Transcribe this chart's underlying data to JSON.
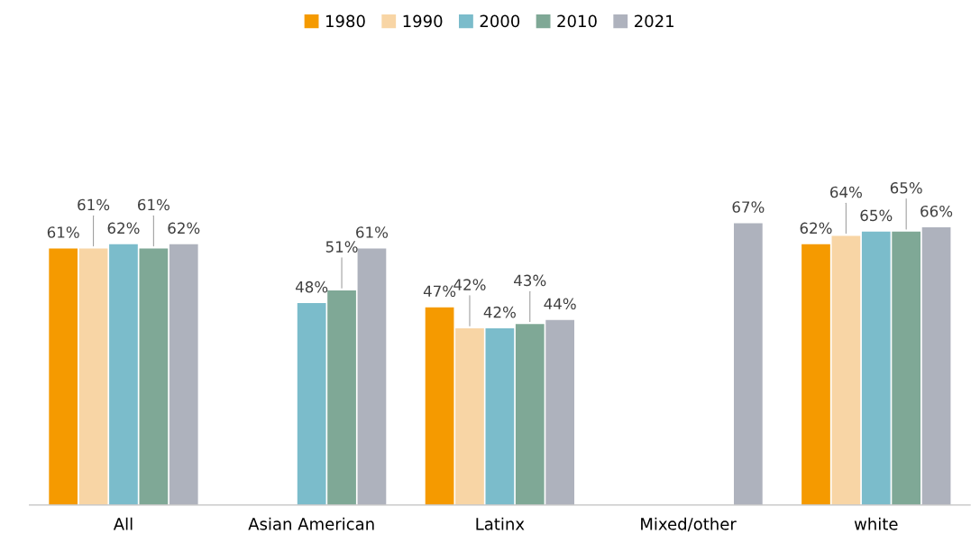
{
  "chart_data": {
    "type": "bar",
    "categories": [
      "All",
      "Asian American",
      "Latinx",
      "Mixed/other",
      "white"
    ],
    "series": [
      {
        "name": "1980",
        "color": "#f59a00",
        "values": [
          61,
          null,
          47,
          null,
          62
        ],
        "value_labels": [
          "61%",
          null,
          "47%",
          null,
          "62%"
        ]
      },
      {
        "name": "1990",
        "color": "#f8d5a5",
        "values": [
          61,
          null,
          42,
          null,
          64
        ],
        "value_labels": [
          "61%",
          null,
          "42%",
          null,
          "64%"
        ]
      },
      {
        "name": "2000",
        "color": "#7bbccb",
        "values": [
          62,
          48,
          42,
          null,
          65
        ],
        "value_labels": [
          "62%",
          "48%",
          "42%",
          null,
          "65%"
        ]
      },
      {
        "name": "2010",
        "color": "#7fa896",
        "values": [
          61,
          51,
          43,
          null,
          65
        ],
        "value_labels": [
          "61%",
          "51%",
          "43%",
          null,
          "65%"
        ]
      },
      {
        "name": "2021",
        "color": "#aeb2bd",
        "values": [
          62,
          61,
          44,
          67,
          66
        ],
        "value_labels": [
          "62%",
          "61%",
          "44%",
          "67%",
          "66%"
        ]
      }
    ],
    "tick_labels": "x",
    "legend": "top"
  }
}
